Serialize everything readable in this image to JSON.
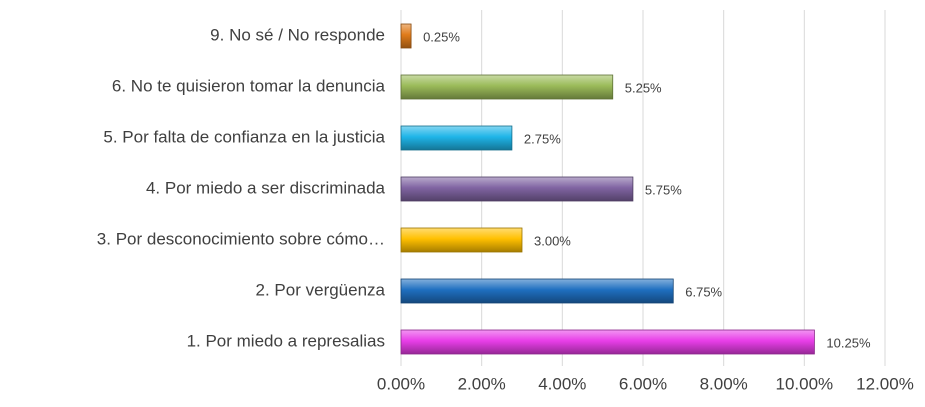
{
  "chart_data": {
    "type": "barh",
    "categories": [
      "9. No sé / No responde",
      "6. No te quisieron tomar la denuncia",
      "5. Por falta de confianza en la justicia",
      "4. Por miedo a ser discriminada",
      "3. Por desconocimiento sobre cómo…",
      "2. Por vergüenza",
      "1. Por miedo a represalias"
    ],
    "values": [
      0.25,
      5.25,
      2.75,
      5.75,
      3.0,
      6.75,
      10.25
    ],
    "value_labels": [
      "0.25%",
      "5.25%",
      "2.75%",
      "5.75%",
      "3.00%",
      "6.75%",
      "10.25%"
    ],
    "colors": [
      "#e07b1a",
      "#9bbb59",
      "#1fb5e8",
      "#8064a2",
      "#ffc000",
      "#1f6fc0",
      "#e83ee8"
    ],
    "xlim": [
      0,
      12
    ],
    "xticks": [
      {
        "value": 0,
        "label": "0.00%"
      },
      {
        "value": 2,
        "label": "2.00%"
      },
      {
        "value": 4,
        "label": "4.00%"
      },
      {
        "value": 6,
        "label": "6.00%"
      },
      {
        "value": 8,
        "label": "8.00%"
      },
      {
        "value": 10,
        "label": "10.00%"
      },
      {
        "value": 12,
        "label": "12.00%"
      }
    ],
    "grid": true
  }
}
